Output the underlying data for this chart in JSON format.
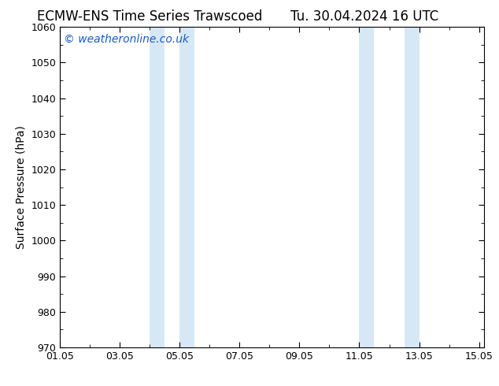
{
  "title_left": "ECMW-ENS Time Series Trawscoed",
  "title_right": "Tu. 30.04.2024 16 UTC",
  "ylabel": "Surface Pressure (hPa)",
  "xlim": [
    1.0,
    15.167
  ],
  "ylim": [
    970,
    1060
  ],
  "xtick_positions": [
    1.0,
    3.0,
    5.0,
    7.0,
    9.0,
    11.0,
    13.0,
    15.0
  ],
  "xtick_labels": [
    "01.05",
    "03.05",
    "05.05",
    "07.05",
    "09.05",
    "11.05",
    "13.05",
    "15.05"
  ],
  "ytick_positions": [
    970,
    980,
    990,
    1000,
    1010,
    1020,
    1030,
    1040,
    1050,
    1060
  ],
  "shaded_bands": [
    {
      "x_start": 4.0,
      "x_end": 4.5
    },
    {
      "x_start": 5.0,
      "x_end": 5.5
    },
    {
      "x_start": 11.0,
      "x_end": 11.5
    },
    {
      "x_start": 12.5,
      "x_end": 13.0
    }
  ],
  "band_color": "#d6e8f5",
  "background_color": "#ffffff",
  "watermark_text": "© weatheronline.co.uk",
  "watermark_color": "#1a5bc4",
  "title_fontsize": 12,
  "axis_label_fontsize": 10,
  "tick_fontsize": 9,
  "watermark_fontsize": 10
}
